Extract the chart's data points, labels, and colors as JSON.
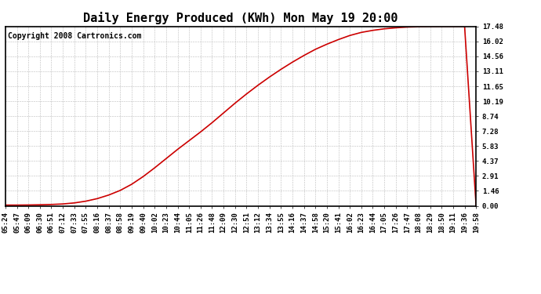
{
  "title": "Daily Energy Produced (KWh) Mon May 19 20:00",
  "copyright_text": "Copyright 2008 Cartronics.com",
  "line_color": "#cc0000",
  "bg_color": "#ffffff",
  "grid_color": "#bbbbbb",
  "border_color": "#000000",
  "y_ticks": [
    0.0,
    1.46,
    2.91,
    4.37,
    5.83,
    7.28,
    8.74,
    10.19,
    11.65,
    13.11,
    14.56,
    16.02,
    17.48
  ],
  "y_max": 17.48,
  "x_labels": [
    "05:24",
    "05:47",
    "06:09",
    "06:30",
    "06:51",
    "07:12",
    "07:33",
    "07:55",
    "08:16",
    "08:37",
    "08:58",
    "09:19",
    "09:40",
    "10:02",
    "10:23",
    "10:44",
    "11:05",
    "11:26",
    "11:48",
    "12:09",
    "12:30",
    "12:51",
    "13:12",
    "13:34",
    "13:55",
    "14:16",
    "14:37",
    "14:58",
    "15:20",
    "15:41",
    "16:02",
    "16:23",
    "16:44",
    "17:05",
    "17:26",
    "17:47",
    "18:08",
    "18:29",
    "18:50",
    "19:11",
    "19:36",
    "19:58"
  ],
  "title_fontsize": 11,
  "copyright_fontsize": 7,
  "tick_fontsize": 6.5,
  "y_vals": [
    0.07,
    0.07,
    0.08,
    0.1,
    0.13,
    0.18,
    0.28,
    0.45,
    0.7,
    1.05,
    1.5,
    2.1,
    2.85,
    3.7,
    4.6,
    5.5,
    6.35,
    7.2,
    8.1,
    9.05,
    10.0,
    10.9,
    11.75,
    12.55,
    13.3,
    14.0,
    14.65,
    15.25,
    15.75,
    16.2,
    16.6,
    16.9,
    17.1,
    17.25,
    17.35,
    17.42,
    17.45,
    17.47,
    17.48,
    17.48,
    17.48,
    0.0
  ]
}
